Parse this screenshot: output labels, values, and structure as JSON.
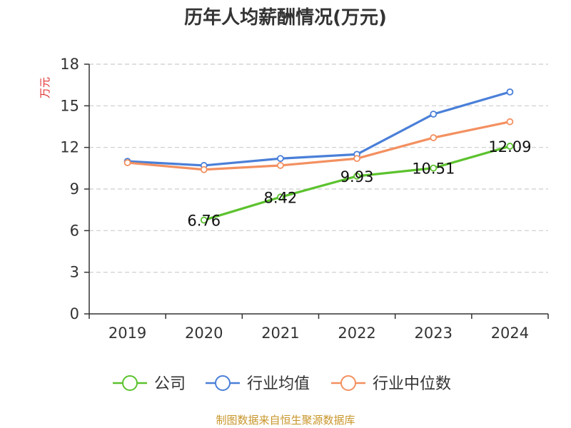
{
  "chart_data": {
    "type": "line",
    "title": "历年人均薪酬情况(万元)",
    "ylabel": "万元",
    "xlabel": "",
    "categories": [
      "2019",
      "2020",
      "2021",
      "2022",
      "2023",
      "2024"
    ],
    "ylim": [
      0,
      18
    ],
    "yticks": [
      0,
      3,
      6,
      9,
      12,
      15,
      18
    ],
    "grid": true,
    "legend_position": "bottom",
    "series": [
      {
        "name": "公司",
        "color": "#5cc22e",
        "values": [
          null,
          6.76,
          8.42,
          9.93,
          10.51,
          12.09
        ],
        "labels": [
          null,
          "6.76",
          "8.42",
          "9.93",
          "10.51",
          "12.09"
        ]
      },
      {
        "name": "行业均值",
        "color": "#4a7fd8",
        "values": [
          11.0,
          10.7,
          11.2,
          11.5,
          14.4,
          16.0
        ],
        "labels": []
      },
      {
        "name": "行业中位数",
        "color": "#f39060",
        "values": [
          10.9,
          10.4,
          10.7,
          11.2,
          12.7,
          13.85
        ],
        "labels": []
      }
    ]
  },
  "source": "制图数据来自恒生聚源数据库",
  "colors": {
    "axis": "#333333",
    "grid": "#cccccc",
    "ylabel": "#e03030",
    "source": "#c8962a"
  }
}
